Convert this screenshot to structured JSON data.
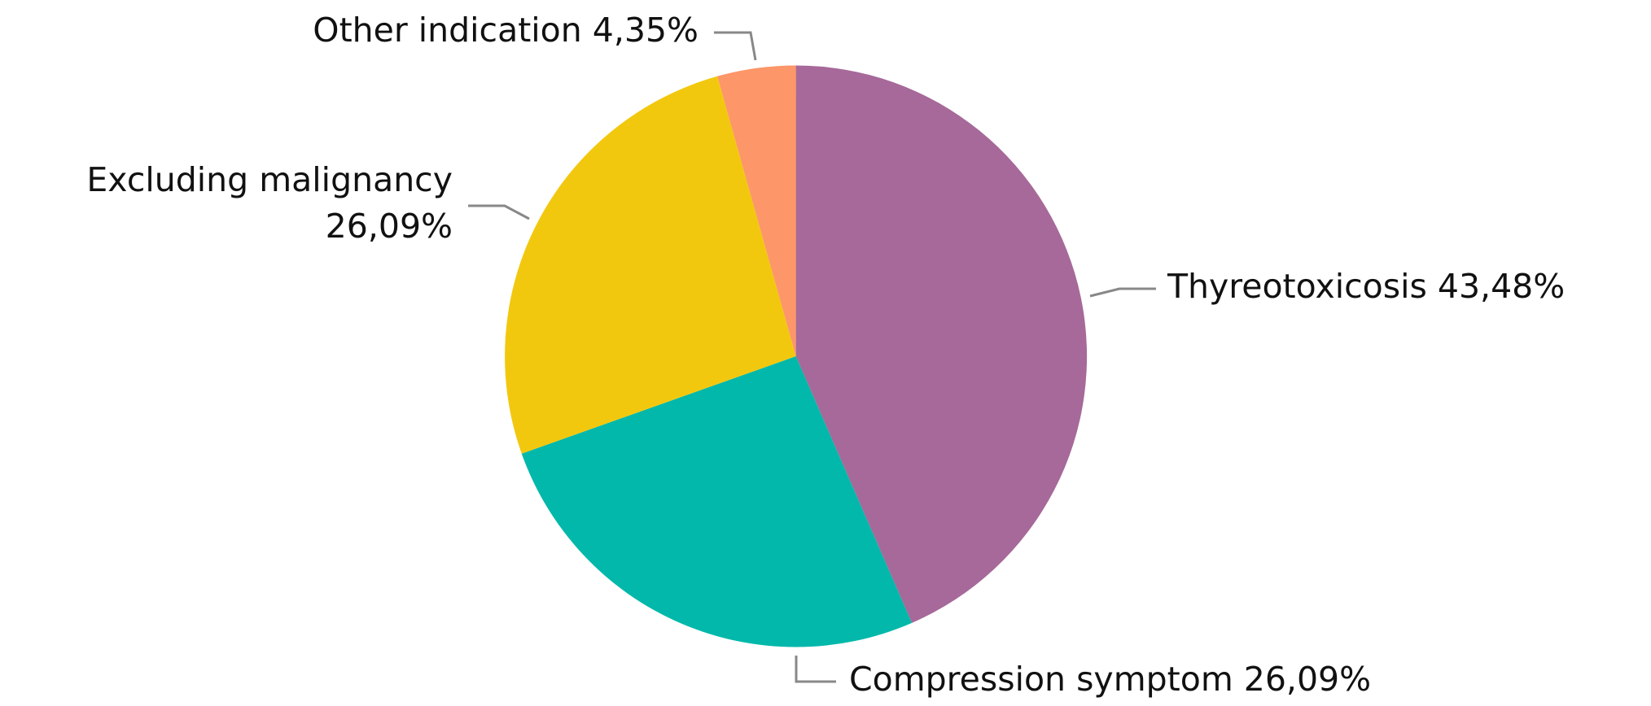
{
  "chart_data": {
    "type": "pie",
    "categories": [
      "Thyreotoxicosis",
      "Compression symptom",
      "Excluding malignancy",
      "Other indication"
    ],
    "values": [
      43.48,
      26.09,
      26.09,
      4.35
    ],
    "value_labels": [
      "43,48%",
      "26,09%",
      "26,09%",
      "4,35%"
    ],
    "colors": [
      "#a66999",
      "#01b8aa",
      "#f2c80f",
      "#fd9668"
    ]
  }
}
